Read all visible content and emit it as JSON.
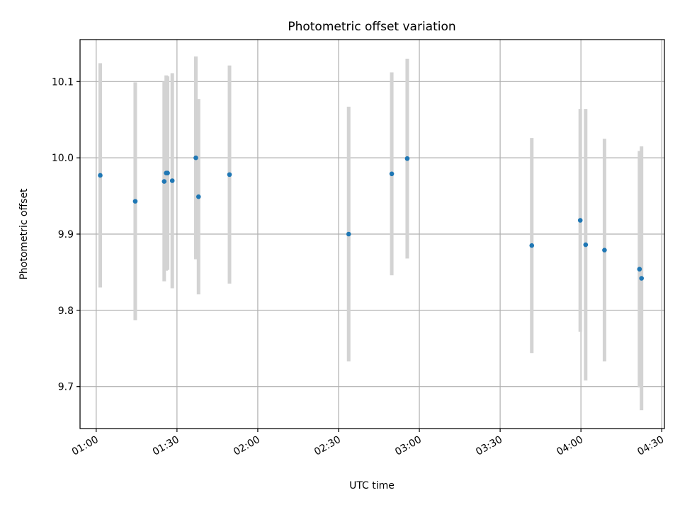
{
  "chart_data": {
    "type": "scatter",
    "title": "Photometric offset variation",
    "xlabel": "UTC time",
    "ylabel": "Photometric offset",
    "x_unit": "time (HH:MM, UTC)",
    "xlim": [
      "00:54",
      "04:31"
    ],
    "ylim": [
      9.645,
      10.155
    ],
    "grid": true,
    "x_ticks": [
      "01:00",
      "01:30",
      "02:00",
      "02:30",
      "03:00",
      "03:30",
      "04:00",
      "04:30"
    ],
    "y_ticks": [
      "9.7",
      "9.8",
      "9.9",
      "10.0",
      "10.1"
    ],
    "colors": {
      "point": "#1f77b4",
      "errorbar": "#d3d3d3",
      "grid": "#b0b0b0",
      "axes": "#000000"
    },
    "points": [
      {
        "x": "01:01:30",
        "y": 9.977,
        "yerr": 0.147
      },
      {
        "x": "01:14:30",
        "y": 9.943,
        "yerr": 0.156
      },
      {
        "x": "01:25:15",
        "y": 9.969,
        "yerr": 0.131
      },
      {
        "x": "01:26:00",
        "y": 9.98,
        "yerr": 0.128
      },
      {
        "x": "01:26:30",
        "y": 9.98,
        "yerr": 0.127
      },
      {
        "x": "01:28:15",
        "y": 9.97,
        "yerr": 0.141
      },
      {
        "x": "01:37:00",
        "y": 10.0,
        "yerr": 0.133
      },
      {
        "x": "01:38:00",
        "y": 9.949,
        "yerr": 0.128
      },
      {
        "x": "01:49:30",
        "y": 9.978,
        "yerr": 0.143
      },
      {
        "x": "02:33:45",
        "y": 9.9,
        "yerr": 0.167
      },
      {
        "x": "02:49:45",
        "y": 9.979,
        "yerr": 0.133
      },
      {
        "x": "02:55:30",
        "y": 9.999,
        "yerr": 0.131
      },
      {
        "x": "03:41:45",
        "y": 9.885,
        "yerr": 0.141
      },
      {
        "x": "03:59:45",
        "y": 9.918,
        "yerr": 0.146
      },
      {
        "x": "04:01:45",
        "y": 9.886,
        "yerr": 0.178
      },
      {
        "x": "04:08:45",
        "y": 9.879,
        "yerr": 0.146
      },
      {
        "x": "04:21:45",
        "y": 9.854,
        "yerr": 0.155
      },
      {
        "x": "04:22:30",
        "y": 9.842,
        "yerr": 0.173
      }
    ]
  }
}
